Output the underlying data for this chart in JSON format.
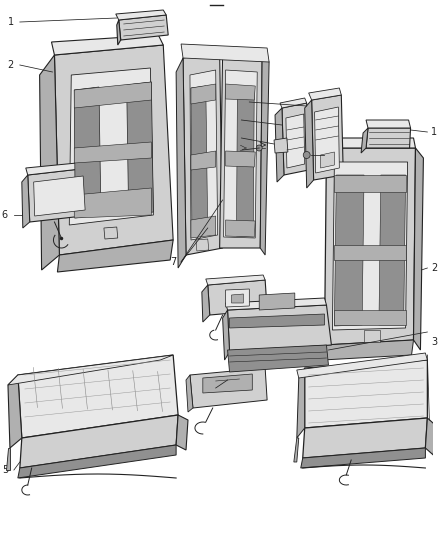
{
  "bg": "#ffffff",
  "lc": "#222222",
  "fc_light": "#e8e8e8",
  "fc_mid": "#d0d0d0",
  "fc_dark": "#b0b0b0",
  "fc_darker": "#909090",
  "label_fs": 7,
  "fig_w": 4.38,
  "fig_h": 5.33,
  "dpi": 100
}
